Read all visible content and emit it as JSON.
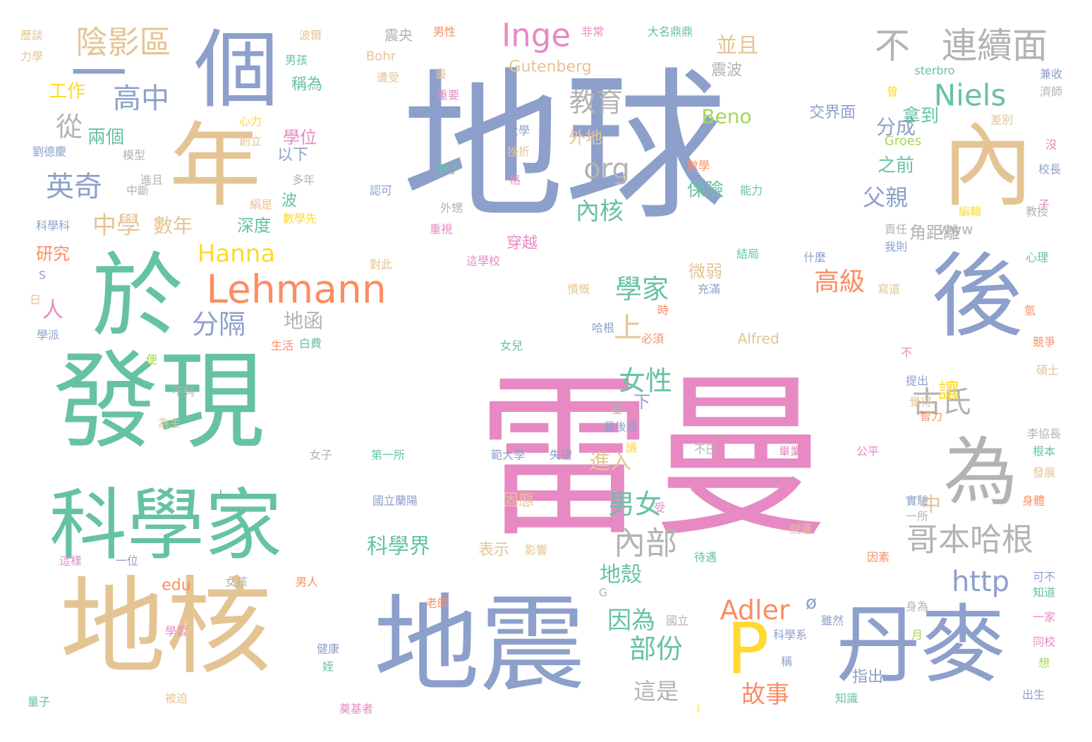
{
  "palette": {
    "blue": "#8da0cb",
    "pink": "#e78ac3",
    "green": "#66c2a5",
    "tan": "#e5c494",
    "yellow": "#ffd92f",
    "orange": "#fc8d62",
    "lime": "#a6d854",
    "gray": "#b3b3b3"
  },
  "words": [
    {
      "text": "地球",
      "color": "blue"
    },
    {
      "text": "雷曼",
      "color": "pink"
    },
    {
      "text": "發現",
      "color": "green"
    },
    {
      "text": "地核",
      "color": "tan"
    },
    {
      "text": "地震",
      "color": "blue"
    },
    {
      "text": "年",
      "color": "tan"
    },
    {
      "text": "內",
      "color": "tan"
    },
    {
      "text": "於",
      "color": "green"
    },
    {
      "text": "後",
      "color": "blue"
    },
    {
      "text": "科學家",
      "color": "green"
    },
    {
      "text": "丹麥",
      "color": "blue"
    },
    {
      "text": "個",
      "color": "blue"
    },
    {
      "text": "為",
      "color": "gray"
    },
    {
      "text": "P",
      "color": "yellow"
    },
    {
      "text": "一",
      "color": "blue"
    },
    {
      "text": "不",
      "color": "gray"
    },
    {
      "text": "連續面",
      "color": "gray"
    },
    {
      "text": "Lehmann",
      "color": "orange"
    },
    {
      "text": "陰影區",
      "color": "tan"
    },
    {
      "text": "Inge",
      "color": "pink"
    },
    {
      "text": "哥本哈根",
      "color": "gray"
    },
    {
      "text": "內部",
      "color": "gray"
    },
    {
      "text": "Niels",
      "color": "green"
    },
    {
      "text": "古氏",
      "color": "gray"
    },
    {
      "text": "高中",
      "color": "blue"
    },
    {
      "text": "英奇",
      "color": "blue"
    },
    {
      "text": "教育",
      "color": "gray"
    },
    {
      "text": "學家",
      "color": "green"
    },
    {
      "text": "http",
      "color": "blue"
    },
    {
      "text": "org",
      "color": "gray"
    },
    {
      "text": "上",
      "color": "tan"
    },
    {
      "text": "分隔",
      "color": "blue"
    },
    {
      "text": "從",
      "color": "gray"
    },
    {
      "text": "男女",
      "color": "green"
    },
    {
      "text": "女性",
      "color": "green"
    },
    {
      "text": "部份",
      "color": "green"
    },
    {
      "text": "Adler",
      "color": "orange"
    },
    {
      "text": "高級",
      "color": "orange"
    },
    {
      "text": "故事",
      "color": "orange"
    },
    {
      "text": "Hanna",
      "color": "yellow"
    },
    {
      "text": "中學",
      "color": "tan"
    },
    {
      "text": "內核",
      "color": "green"
    },
    {
      "text": "數年",
      "color": "tan"
    },
    {
      "text": "因為",
      "color": "green"
    },
    {
      "text": "父親",
      "color": "blue"
    },
    {
      "text": "這是",
      "color": "gray"
    },
    {
      "text": "並且",
      "color": "tan"
    },
    {
      "text": "讓",
      "color": "yellow"
    },
    {
      "text": "進入",
      "color": "tan"
    },
    {
      "text": "科學界",
      "color": "green"
    },
    {
      "text": "人",
      "color": "pink"
    },
    {
      "text": "Beno",
      "color": "lime"
    },
    {
      "text": "地殼",
      "color": "green"
    },
    {
      "text": "中",
      "color": "tan"
    },
    {
      "text": "分成",
      "color": "blue"
    },
    {
      "text": "地函",
      "color": "gray"
    },
    {
      "text": "兩個",
      "color": "green"
    },
    {
      "text": "工作",
      "color": "yellow"
    },
    {
      "text": "拿到",
      "color": "green"
    },
    {
      "text": "之前",
      "color": "green"
    },
    {
      "text": "保險",
      "color": "green"
    },
    {
      "text": "角距離",
      "color": "gray"
    },
    {
      "text": "研究",
      "color": "orange"
    },
    {
      "text": "深度",
      "color": "green"
    },
    {
      "text": "學位",
      "color": "pink"
    },
    {
      "text": "Gutenberg",
      "color": "tan"
    },
    {
      "text": "Bohr",
      "color": "tan"
    },
    {
      "text": "外地",
      "color": "tan"
    },
    {
      "text": "微弱",
      "color": "tan"
    },
    {
      "text": "指出",
      "color": "blue"
    },
    {
      "text": "穿越",
      "color": "pink"
    },
    {
      "text": "交界面",
      "color": "blue"
    },
    {
      "text": "波",
      "color": "green"
    },
    {
      "text": "以下",
      "color": "blue"
    },
    {
      "text": "稱為",
      "color": "green"
    },
    {
      "text": "震波",
      "color": "gray"
    },
    {
      "text": "表示",
      "color": "tan"
    },
    {
      "text": "固態",
      "color": "tan"
    },
    {
      "text": "edu",
      "color": "orange"
    },
    {
      "text": "www",
      "color": "gray"
    },
    {
      "text": "ø",
      "color": "blue"
    },
    {
      "text": "下",
      "color": "blue"
    },
    {
      "text": "Alfred",
      "color": "tan"
    },
    {
      "text": "sterbro",
      "color": "green"
    },
    {
      "text": "Groes",
      "color": "lime"
    },
    {
      "text": "震央",
      "color": "gray"
    },
    {
      "text": "男性",
      "color": "orange"
    },
    {
      "text": "非常",
      "color": "pink"
    },
    {
      "text": "大名鼎鼎",
      "color": "green"
    },
    {
      "text": "波爾",
      "color": "tan"
    },
    {
      "text": "男孩",
      "color": "green"
    },
    {
      "text": "遭受",
      "color": "tan"
    },
    {
      "text": "最",
      "color": "tan"
    },
    {
      "text": "重要",
      "color": "pink"
    },
    {
      "text": "歷談",
      "color": "tan"
    },
    {
      "text": "力學",
      "color": "tan"
    },
    {
      "text": "大學",
      "color": "blue"
    },
    {
      "text": "挫折",
      "color": "tan"
    },
    {
      "text": "原子",
      "color": "green"
    },
    {
      "text": "格",
      "color": "pink"
    },
    {
      "text": "外甥",
      "color": "gray"
    },
    {
      "text": "重視",
      "color": "pink"
    },
    {
      "text": "這學校",
      "color": "pink"
    },
    {
      "text": "認可",
      "color": "blue"
    },
    {
      "text": "多年",
      "color": "gray"
    },
    {
      "text": "絹是",
      "color": "tan"
    },
    {
      "text": "中斷",
      "color": "gray"
    },
    {
      "text": "進且",
      "color": "gray"
    },
    {
      "text": "模型",
      "color": "gray"
    },
    {
      "text": "劉德慶",
      "color": "blue"
    },
    {
      "text": "創立",
      "color": "tan"
    },
    {
      "text": "心力",
      "color": "yellow"
    },
    {
      "text": "數學",
      "color": "orange"
    },
    {
      "text": "能力",
      "color": "green"
    },
    {
      "text": "數學先",
      "color": "yellow"
    },
    {
      "text": "科學科",
      "color": "blue"
    },
    {
      "text": "S",
      "color": "blue"
    },
    {
      "text": "日",
      "color": "tan"
    },
    {
      "text": "學派",
      "color": "blue"
    },
    {
      "text": "對此",
      "color": "tan"
    },
    {
      "text": "結局",
      "color": "green"
    },
    {
      "text": "什麼",
      "color": "blue"
    },
    {
      "text": "充滿",
      "color": "blue"
    },
    {
      "text": "憤慨",
      "color": "tan"
    },
    {
      "text": "哈根",
      "color": "blue"
    },
    {
      "text": "必須",
      "color": "orange"
    },
    {
      "text": "女兒",
      "color": "green"
    },
    {
      "text": "生活",
      "color": "orange"
    },
    {
      "text": "白費",
      "color": "green"
    },
    {
      "text": "時",
      "color": "orange"
    },
    {
      "text": "氫",
      "color": "orange"
    },
    {
      "text": "競爭",
      "color": "orange"
    },
    {
      "text": "寫道",
      "color": "tan"
    },
    {
      "text": "便",
      "color": "lime"
    },
    {
      "text": "不夠",
      "color": "gray"
    },
    {
      "text": "為主",
      "color": "tan"
    },
    {
      "text": "臺",
      "color": "gray"
    },
    {
      "text": "最後還",
      "color": "blue"
    },
    {
      "text": "讀",
      "color": "yellow"
    },
    {
      "text": "第一所",
      "color": "green"
    },
    {
      "text": "範大學",
      "color": "blue"
    },
    {
      "text": "失望",
      "color": "blue"
    },
    {
      "text": "不已",
      "color": "gray"
    },
    {
      "text": "畢業",
      "color": "pink"
    },
    {
      "text": "公平",
      "color": "pink"
    },
    {
      "text": "國立蘭陽",
      "color": "blue"
    },
    {
      "text": "女子",
      "color": "gray"
    },
    {
      "text": "L",
      "color": "blue"
    },
    {
      "text": "受",
      "color": "pink"
    },
    {
      "text": "影響",
      "color": "tan"
    },
    {
      "text": "說過",
      "color": "tan"
    },
    {
      "text": "一所",
      "color": "gray"
    },
    {
      "text": "實驗",
      "color": "blue"
    },
    {
      "text": "發展",
      "color": "tan"
    },
    {
      "text": "身體",
      "color": "orange"
    },
    {
      "text": "因素",
      "color": "orange"
    },
    {
      "text": "待遇",
      "color": "green"
    },
    {
      "text": "這樣",
      "color": "pink"
    },
    {
      "text": "一位",
      "color": "blue"
    },
    {
      "text": "女孩",
      "color": "gray"
    },
    {
      "text": "男人",
      "color": "orange"
    },
    {
      "text": "老師",
      "color": "orange"
    },
    {
      "text": "G",
      "color": "gray"
    },
    {
      "text": "雖然",
      "color": "blue"
    },
    {
      "text": "國立",
      "color": "gray"
    },
    {
      "text": "科學系",
      "color": "blue"
    },
    {
      "text": "稱",
      "color": "blue"
    },
    {
      "text": "學習",
      "color": "pink"
    },
    {
      "text": "健康",
      "color": "blue"
    },
    {
      "text": "姪",
      "color": "green"
    },
    {
      "text": "被迫",
      "color": "tan"
    },
    {
      "text": "量子",
      "color": "green"
    },
    {
      "text": "奠基者",
      "color": "pink"
    },
    {
      "text": "i",
      "color": "yellow"
    },
    {
      "text": "知識",
      "color": "green"
    },
    {
      "text": "月",
      "color": "lime"
    },
    {
      "text": "身為",
      "color": "gray"
    },
    {
      "text": "一家",
      "color": "pink"
    },
    {
      "text": "同校",
      "color": "pink"
    },
    {
      "text": "想",
      "color": "lime"
    },
    {
      "text": "出生",
      "color": "blue"
    },
    {
      "text": "可不",
      "color": "blue"
    },
    {
      "text": "知道",
      "color": "green"
    },
    {
      "text": "根本",
      "color": "green"
    },
    {
      "text": "李協長",
      "color": "gray"
    },
    {
      "text": "智力",
      "color": "orange"
    },
    {
      "text": "覺得",
      "color": "tan"
    },
    {
      "text": "提出",
      "color": "blue"
    },
    {
      "text": "碩士",
      "color": "tan"
    },
    {
      "text": "不",
      "color": "pink"
    },
    {
      "text": "責任",
      "color": "gray"
    },
    {
      "text": "教授",
      "color": "gray"
    },
    {
      "text": "編輯",
      "color": "yellow"
    },
    {
      "text": "我則",
      "color": "blue"
    },
    {
      "text": "心理",
      "color": "green"
    },
    {
      "text": "子",
      "color": "pink"
    },
    {
      "text": "校長",
      "color": "blue"
    },
    {
      "text": "沒",
      "color": "pink"
    },
    {
      "text": "差別",
      "color": "tan"
    },
    {
      "text": "濟師",
      "color": "gray"
    },
    {
      "text": "兼收",
      "color": "blue"
    },
    {
      "text": "曾",
      "color": "yellow"
    }
  ]
}
